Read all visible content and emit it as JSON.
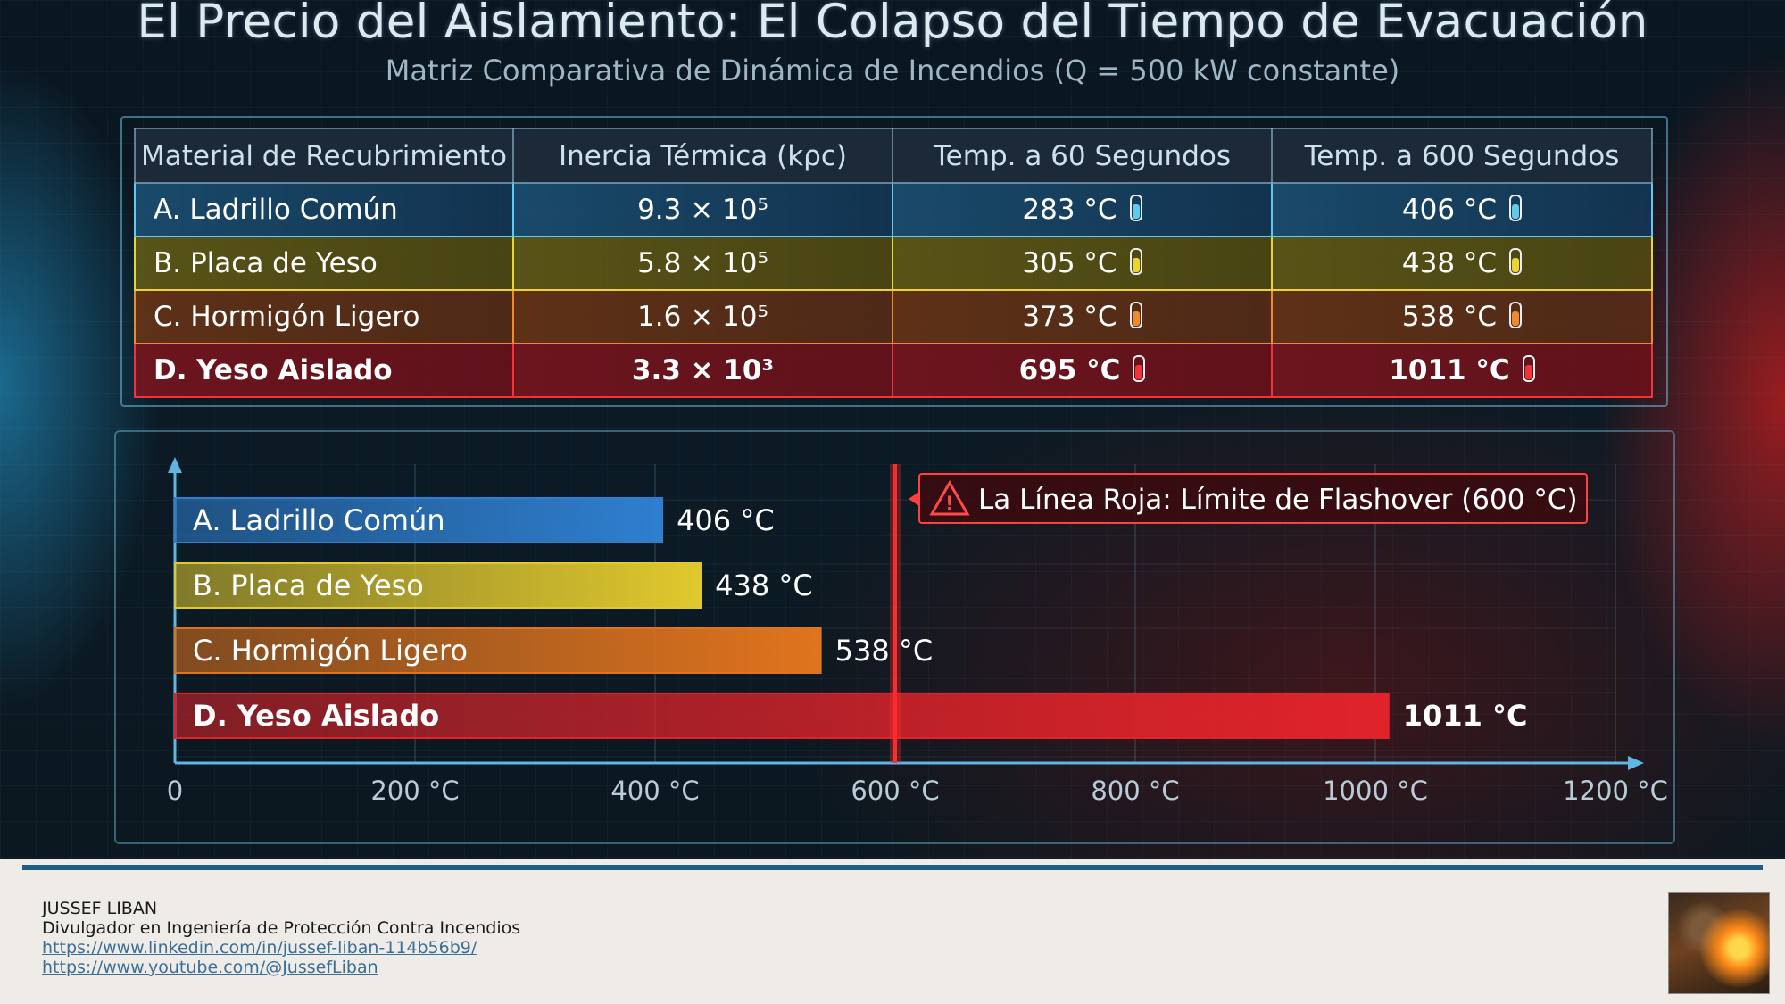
{
  "title": "El Precio del Aislamiento: El Colapso del Tiempo de Evacuación",
  "subtitle": "Matriz Comparativa de Dinámica de Incendios (Q = 500 kW constante)",
  "table": {
    "headers": [
      "Material de Recubrimiento",
      "Inercia Térmica (kρc)",
      "Temp. a 60 Segundos",
      "Temp. a 600 Segundos"
    ],
    "rows": [
      {
        "material": "A. Ladrillo Común",
        "inercia": "9.3 × 10⁵",
        "t60": "283 °C",
        "t600": "406 °C",
        "color": "#61c8f0"
      },
      {
        "material": "B. Placa de Yeso",
        "inercia": "5.8 × 10⁵",
        "t60": "305 °C",
        "t600": "438 °C",
        "color": "#e8d530"
      },
      {
        "material": "C. Hormigón Ligero",
        "inercia": "1.6 × 10⁵",
        "t60": "373 °C",
        "t600": "538 °C",
        "color": "#ee8a2c"
      },
      {
        "material": "D. Yeso Aislado",
        "inercia": "3.3 × 10³",
        "t60": "695 °C",
        "t600": "1011 °C",
        "color": "#f0353a"
      }
    ]
  },
  "chart_data": {
    "type": "bar",
    "orientation": "horizontal",
    "categories": [
      "A. Ladrillo Común",
      "B. Placa de Yeso",
      "C. Hormigón Ligero",
      "D. Yeso Aislado"
    ],
    "values": [
      406,
      438,
      538,
      1011
    ],
    "value_labels": [
      "406 °C",
      "438 °C",
      "538 °C",
      "1011 °C"
    ],
    "colors": [
      "#2f7fd0",
      "#e0c82e",
      "#e0741e",
      "#e0232a"
    ],
    "xlim": [
      0,
      1200
    ],
    "xticks": [
      0,
      200,
      400,
      600,
      800,
      1000,
      1200
    ],
    "xtick_labels": [
      "0",
      "200 °C",
      "400 °C",
      "600 °C",
      "800 °C",
      "1000 °C",
      "1200 °C"
    ],
    "reference_line": {
      "x": 600,
      "label": "La Línea Roja: Límite de Flashover (600 °C)",
      "color": "#ff2b2b"
    },
    "grid": true
  },
  "footer": {
    "name": "JUSSEF LIBAN",
    "role": "Divulgador en Ingeniería de Protección Contra Incendios",
    "linkedin": "https://www.linkedin.com/in/jussef-liban-114b56b9/",
    "youtube": "https://www.youtube.com/@JussefLiban"
  }
}
